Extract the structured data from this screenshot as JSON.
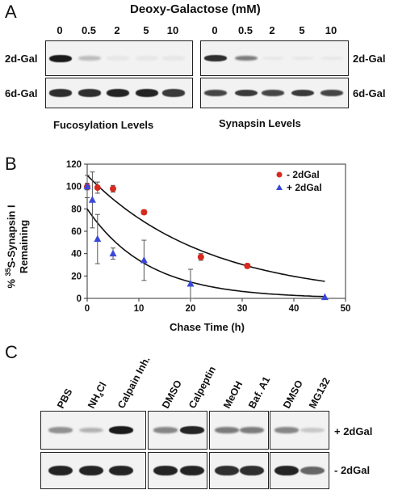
{
  "panel_a": {
    "letter": "A",
    "title": "Deoxy-Galactose (mM)",
    "lanes": [
      "0",
      "0.5",
      "2",
      "5",
      "10"
    ],
    "row_top": "2d-Gal",
    "row_bottom": "6d-Gal",
    "caption_left": "Fucosylation Levels",
    "caption_right": "Synapsin Levels",
    "left_top_intensity": [
      1.0,
      0.25,
      0.05,
      0.05,
      0.05
    ],
    "left_bottom_intensity": [
      0.9,
      0.9,
      0.95,
      0.95,
      0.85
    ],
    "right_top_intensity": [
      0.9,
      0.55,
      0.05,
      0.05,
      0.05
    ],
    "right_bottom_intensity": [
      0.8,
      0.85,
      0.8,
      0.85,
      0.8
    ]
  },
  "panel_b": {
    "letter": "B",
    "legend_minus": "- 2dGal",
    "legend_plus": "+ 2dGal",
    "minus_color": "#d62a1e",
    "plus_color": "#3a48d8",
    "ylabel_pre": "% ",
    "ylabel_sup": "35",
    "ylabel_post": "S-Synapsin I",
    "ylabel_line2": "Remaining"
  },
  "chart_data": {
    "type": "scatter",
    "xlabel": "Chase Time (h)",
    "ylabel": "% 35S-Synapsin I Remaining",
    "xlim": [
      0,
      50
    ],
    "ylim": [
      0,
      120
    ],
    "xticks": [
      "0",
      "10",
      "20",
      "30",
      "40",
      "50"
    ],
    "yticks": [
      "0",
      "20",
      "40",
      "60",
      "80",
      "100",
      "120"
    ],
    "legend_position": "top-right",
    "series": [
      {
        "name": "- 2dGal",
        "marker": "circle",
        "x": [
          0,
          2,
          5,
          11,
          22,
          31
        ],
        "y": [
          100,
          99,
          98,
          77,
          37,
          29
        ],
        "err": [
          3,
          5,
          3,
          2,
          3,
          2
        ],
        "fit": {
          "a": 110,
          "k": 0.043
        }
      },
      {
        "name": "+ 2dGal",
        "marker": "triangle",
        "x": [
          0,
          1,
          2,
          5,
          11,
          20,
          46
        ],
        "y": [
          100,
          88,
          53,
          40,
          34,
          13,
          1
        ],
        "err": [
          10,
          25,
          22,
          5,
          18,
          13,
          1
        ],
        "fit": {
          "a": 80,
          "k": 0.085
        }
      }
    ]
  },
  "panel_c": {
    "letter": "C",
    "lanes": [
      "PBS",
      "NH4Cl",
      "Calpain Inh.",
      "DMSO",
      "Calpeptin",
      "MeOH",
      "Baf. A1",
      "DMSO",
      "MG132"
    ],
    "row_top": "+ 2dGal",
    "row_bottom": "- 2dGal",
    "top_intensity": [
      0.45,
      0.3,
      1.0,
      0.5,
      0.95,
      0.55,
      0.55,
      0.5,
      0.2
    ],
    "bottom_intensity": [
      0.95,
      0.95,
      0.95,
      0.95,
      0.95,
      0.9,
      0.9,
      0.95,
      0.65
    ]
  }
}
